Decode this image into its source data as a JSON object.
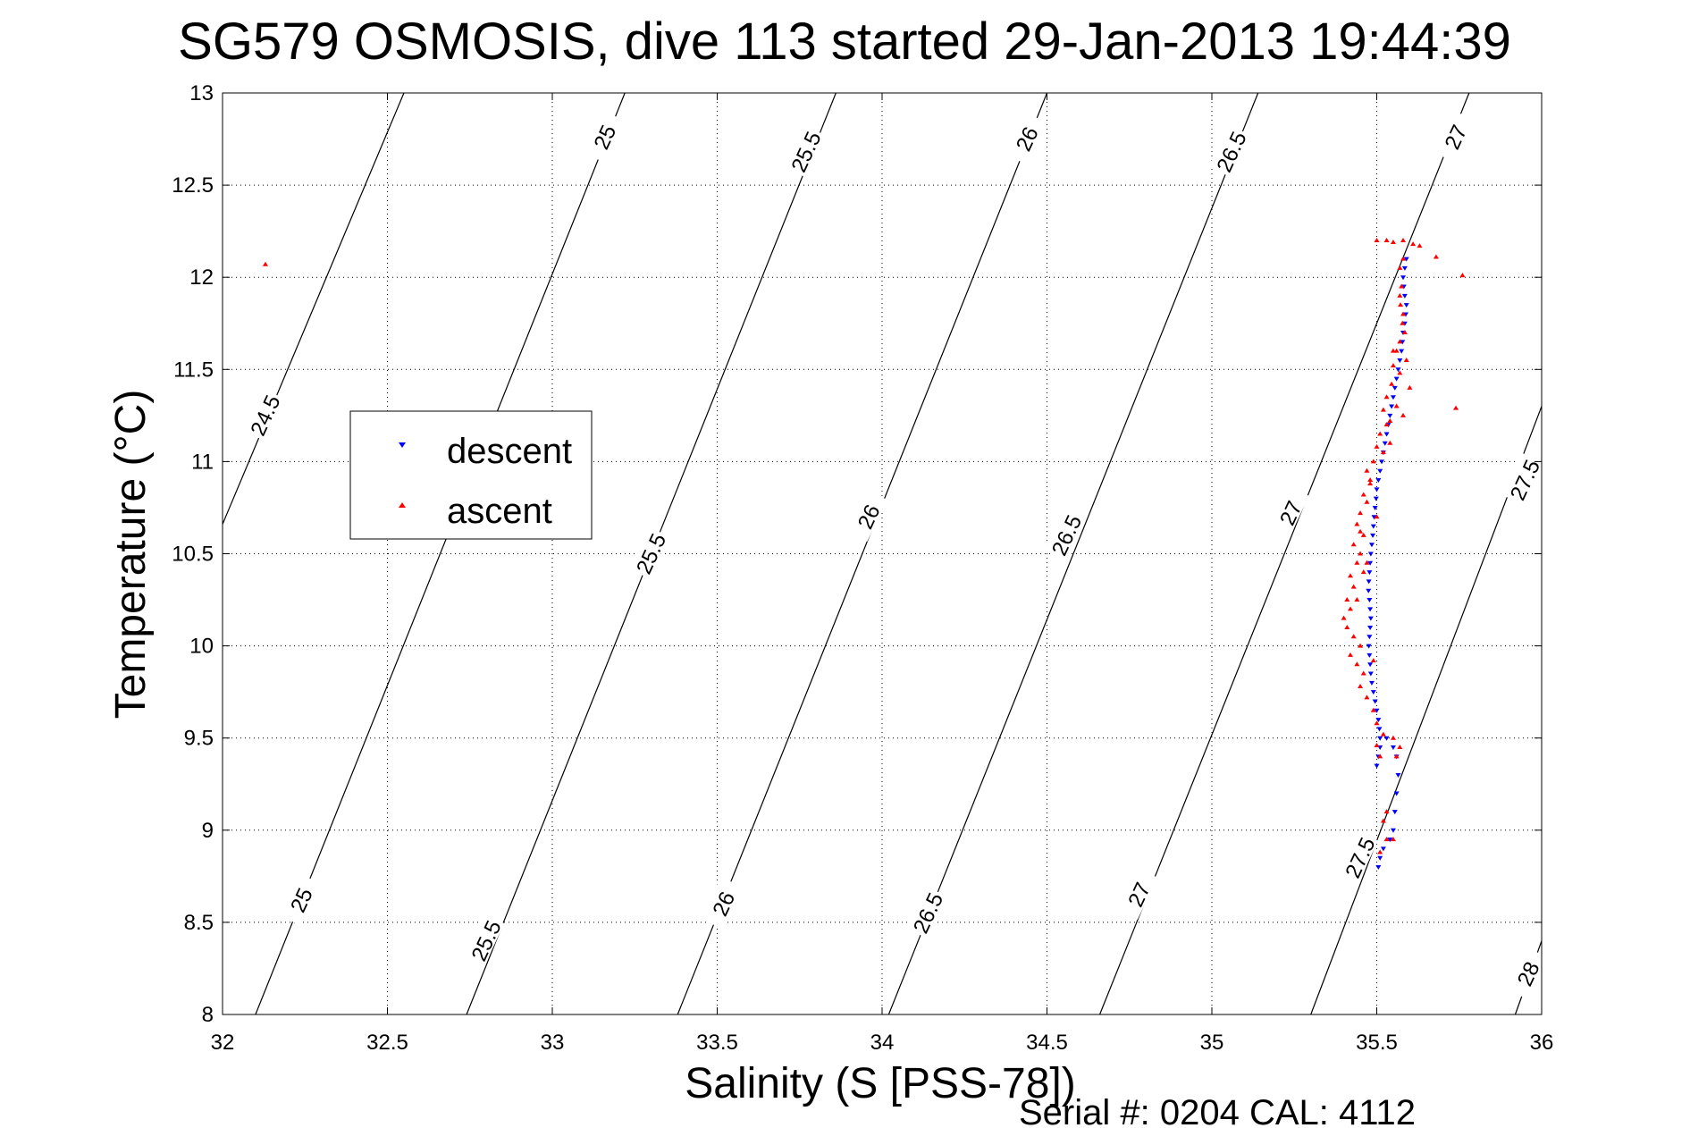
{
  "chart_data": {
    "type": "scatter",
    "title": "SG579 OSMOSIS, dive 113 started 29-Jan-2013 19:44:39",
    "xlabel": "Salinity (S [PSS-78])",
    "ylabel": "Temperature (°C)",
    "xlim": [
      32,
      36
    ],
    "ylim": [
      8,
      13
    ],
    "grid": true,
    "legend_placement": "middle-left",
    "x_ticks": [
      "32",
      "32.5",
      "33",
      "33.5",
      "34",
      "34.5",
      "35",
      "35.5",
      "36"
    ],
    "y_ticks": [
      "8",
      "8.5",
      "9",
      "9.5",
      "10",
      "10.5",
      "11",
      "11.5",
      "12",
      "12.5",
      "13"
    ],
    "isopycnals": [
      {
        "label": "24.5",
        "points": [
          [
            32.0,
            10.66
          ],
          [
            32.55,
            13.0
          ]
        ]
      },
      {
        "label": "25",
        "points": [
          [
            32.1,
            8.0
          ],
          [
            33.22,
            13.0
          ]
        ]
      },
      {
        "label": "25.5",
        "points": [
          [
            32.74,
            8.0
          ],
          [
            33.86,
            13.0
          ]
        ]
      },
      {
        "label": "26",
        "points": [
          [
            33.38,
            8.0
          ],
          [
            34.5,
            13.0
          ]
        ]
      },
      {
        "label": "26.5",
        "points": [
          [
            34.02,
            8.0
          ],
          [
            35.14,
            13.0
          ]
        ]
      },
      {
        "label": "27",
        "points": [
          [
            34.66,
            8.0
          ],
          [
            35.78,
            13.0
          ]
        ]
      },
      {
        "label": "27.5",
        "points": [
          [
            35.3,
            8.0
          ],
          [
            36.0,
            11.3
          ]
        ]
      },
      {
        "label": "28",
        "points": [
          [
            35.92,
            8.0
          ],
          [
            36.0,
            8.4
          ]
        ]
      }
    ],
    "contour_labels": [
      {
        "text": "24.5",
        "x": 32.13,
        "y": 11.25
      },
      {
        "text": "25",
        "x": 33.16,
        "y": 12.76
      },
      {
        "text": "25.5",
        "x": 33.77,
        "y": 12.68
      },
      {
        "text": "26",
        "x": 34.44,
        "y": 12.75
      },
      {
        "text": "26.5",
        "x": 35.06,
        "y": 12.68
      },
      {
        "text": "27",
        "x": 35.74,
        "y": 12.76
      },
      {
        "text": "25.5",
        "x": 32.8,
        "y": 8.4
      },
      {
        "text": "26",
        "x": 33.52,
        "y": 8.6
      },
      {
        "text": "26.5",
        "x": 34.14,
        "y": 8.55
      },
      {
        "text": "27",
        "x": 34.78,
        "y": 8.65
      },
      {
        "text": "27.5",
        "x": 35.45,
        "y": 8.85
      },
      {
        "text": "28",
        "x": 35.96,
        "y": 8.22
      },
      {
        "text": "25",
        "x": 32.24,
        "y": 8.62
      },
      {
        "text": "25.5",
        "x": 33.3,
        "y": 10.5
      },
      {
        "text": "26",
        "x": 33.96,
        "y": 10.7
      },
      {
        "text": "26.5",
        "x": 34.56,
        "y": 10.6
      },
      {
        "text": "27",
        "x": 35.24,
        "y": 10.72
      },
      {
        "text": "27.5",
        "x": 35.95,
        "y": 10.9
      }
    ],
    "series": [
      {
        "name": "descent",
        "color": "#0000ff",
        "marker": "triangle-down",
        "points": [
          [
            35.59,
            12.1
          ],
          [
            35.585,
            12.05
          ],
          [
            35.58,
            12.0
          ],
          [
            35.582,
            11.95
          ],
          [
            35.585,
            11.9
          ],
          [
            35.59,
            11.85
          ],
          [
            35.588,
            11.8
          ],
          [
            35.585,
            11.75
          ],
          [
            35.58,
            11.7
          ],
          [
            35.578,
            11.65
          ],
          [
            35.575,
            11.6
          ],
          [
            35.57,
            11.55
          ],
          [
            35.565,
            11.5
          ],
          [
            35.56,
            11.45
          ],
          [
            35.555,
            11.4
          ],
          [
            35.55,
            11.35
          ],
          [
            35.545,
            11.3
          ],
          [
            35.54,
            11.25
          ],
          [
            35.535,
            11.2
          ],
          [
            35.53,
            11.15
          ],
          [
            35.525,
            11.1
          ],
          [
            35.52,
            11.05
          ],
          [
            35.515,
            11.0
          ],
          [
            35.51,
            10.95
          ],
          [
            35.505,
            10.9
          ],
          [
            35.5,
            10.85
          ],
          [
            35.498,
            10.8
          ],
          [
            35.495,
            10.75
          ],
          [
            35.492,
            10.7
          ],
          [
            35.49,
            10.65
          ],
          [
            35.488,
            10.6
          ],
          [
            35.485,
            10.55
          ],
          [
            35.482,
            10.5
          ],
          [
            35.48,
            10.45
          ],
          [
            35.478,
            10.4
          ],
          [
            35.476,
            10.35
          ],
          [
            35.475,
            10.3
          ],
          [
            35.478,
            10.25
          ],
          [
            35.48,
            10.2
          ],
          [
            35.482,
            10.15
          ],
          [
            35.48,
            10.1
          ],
          [
            35.478,
            10.05
          ],
          [
            35.476,
            10.0
          ],
          [
            35.478,
            9.95
          ],
          [
            35.48,
            9.9
          ],
          [
            35.482,
            9.85
          ],
          [
            35.485,
            9.8
          ],
          [
            35.49,
            9.75
          ],
          [
            35.495,
            9.7
          ],
          [
            35.5,
            9.65
          ],
          [
            35.505,
            9.6
          ],
          [
            35.508,
            9.55
          ],
          [
            35.51,
            9.5
          ],
          [
            35.51,
            9.45
          ],
          [
            35.505,
            9.4
          ],
          [
            35.5,
            9.35
          ],
          [
            35.53,
            9.5
          ],
          [
            35.55,
            9.45
          ],
          [
            35.56,
            9.4
          ],
          [
            35.565,
            9.3
          ],
          [
            35.56,
            9.2
          ],
          [
            35.555,
            9.1
          ],
          [
            35.55,
            9.0
          ],
          [
            35.54,
            8.95
          ],
          [
            35.52,
            8.9
          ],
          [
            35.51,
            8.85
          ],
          [
            35.505,
            8.8
          ]
        ]
      },
      {
        "name": "ascent",
        "color": "#ff0000",
        "marker": "triangle-up",
        "points": [
          [
            32.13,
            12.07
          ],
          [
            35.76,
            12.01
          ],
          [
            35.68,
            12.11
          ],
          [
            35.74,
            11.29
          ],
          [
            35.5,
            12.2
          ],
          [
            35.53,
            12.2
          ],
          [
            35.55,
            12.19
          ],
          [
            35.58,
            12.2
          ],
          [
            35.61,
            12.18
          ],
          [
            35.63,
            12.17
          ],
          [
            35.57,
            12.05
          ],
          [
            35.575,
            11.95
          ],
          [
            35.572,
            11.85
          ],
          [
            35.578,
            11.75
          ],
          [
            35.57,
            11.65
          ],
          [
            35.56,
            11.6
          ],
          [
            35.55,
            11.52
          ],
          [
            35.57,
            11.48
          ],
          [
            35.545,
            11.42
          ],
          [
            35.53,
            11.35
          ],
          [
            35.52,
            11.28
          ],
          [
            35.54,
            11.22
          ],
          [
            35.51,
            11.15
          ],
          [
            35.5,
            11.08
          ],
          [
            35.49,
            11.0
          ],
          [
            35.47,
            10.95
          ],
          [
            35.48,
            10.88
          ],
          [
            35.46,
            10.82
          ],
          [
            35.47,
            10.78
          ],
          [
            35.45,
            10.72
          ],
          [
            35.44,
            10.66
          ],
          [
            35.46,
            10.6
          ],
          [
            35.43,
            10.55
          ],
          [
            35.45,
            10.5
          ],
          [
            35.44,
            10.45
          ],
          [
            35.42,
            10.38
          ],
          [
            35.43,
            10.32
          ],
          [
            35.41,
            10.25
          ],
          [
            35.42,
            10.2
          ],
          [
            35.4,
            10.15
          ],
          [
            35.41,
            10.1
          ],
          [
            35.43,
            10.05
          ],
          [
            35.45,
            10.0
          ],
          [
            35.42,
            9.95
          ],
          [
            35.44,
            9.9
          ],
          [
            35.46,
            9.85
          ],
          [
            35.45,
            9.78
          ],
          [
            35.47,
            9.72
          ],
          [
            35.49,
            9.65
          ],
          [
            35.5,
            9.58
          ],
          [
            35.52,
            9.52
          ],
          [
            35.5,
            9.46
          ],
          [
            35.51,
            9.4
          ],
          [
            35.55,
            9.5
          ],
          [
            35.57,
            9.45
          ],
          [
            35.56,
            9.4
          ],
          [
            35.53,
            9.1
          ],
          [
            35.52,
            9.05
          ],
          [
            35.53,
            8.95
          ],
          [
            35.51,
            8.88
          ],
          [
            35.55,
            8.95
          ],
          [
            35.54,
            11.1
          ],
          [
            35.56,
            11.3
          ],
          [
            35.58,
            11.25
          ],
          [
            35.6,
            11.4
          ],
          [
            35.59,
            11.55
          ],
          [
            35.585,
            11.7
          ],
          [
            35.58,
            12.1
          ],
          [
            35.57,
            11.9
          ],
          [
            35.58,
            11.8
          ],
          [
            35.5,
            10.7
          ],
          [
            35.48,
            10.9
          ],
          [
            35.46,
            10.4
          ],
          [
            35.44,
            10.25
          ],
          [
            35.49,
            9.92
          ],
          [
            35.47,
            10.45
          ],
          [
            35.45,
            10.62
          ],
          [
            35.52,
            11.05
          ],
          [
            35.53,
            11.2
          ],
          [
            35.55,
            11.6
          ]
        ]
      }
    ]
  },
  "footer": {
    "serial_text": "Serial #: 0204  CAL: 4112"
  }
}
